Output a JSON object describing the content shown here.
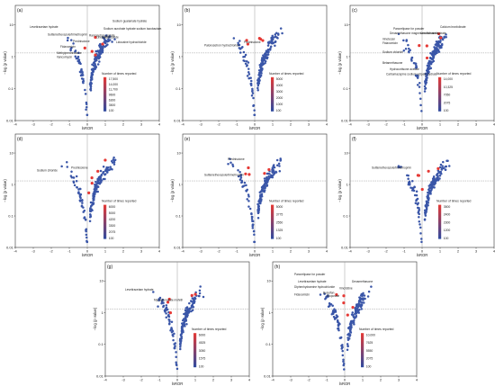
{
  "chart_data": [
    {
      "type": "scatter",
      "panel_label": "(a)",
      "xlabel": "lnROR",
      "ylabel": "−log (p value)",
      "xlim": [
        -4,
        4
      ],
      "ylim": [
        0.01,
        40
      ],
      "ylog": true,
      "xticks": [
        -4,
        -3,
        -2,
        -1,
        0,
        1,
        2,
        3,
        4
      ],
      "yticks": [
        "0.01",
        "0.1",
        "1",
        "10"
      ],
      "legend": {
        "title": "Number of times reported",
        "values": [
          "17,500",
          "14,000",
          "11,700",
          "9600",
          "6300",
          "3500",
          "100"
        ]
      },
      "annotations": [
        {
          "text": "Levetiracetam hydrate",
          "x": -3.2,
          "y": 8
        },
        {
          "text": "Sulfamethoxazole/trimethoprim",
          "x": -2.2,
          "y": 4.5
        },
        {
          "text": "Prednisolone",
          "x": -0.8,
          "y": 2.8
        },
        {
          "text": "Fidaxomicin",
          "x": -1.5,
          "y": 1.9
        },
        {
          "text": "Methylprednisolone",
          "x": -1.7,
          "y": 1.2
        },
        {
          "text": "Vancomycin",
          "x": -1.7,
          "y": 0.9
        },
        {
          "text": "Sodium guaiamate hydrate",
          "x": 1.4,
          "y": 12
        },
        {
          "text": "Sodium aurobate hydrate sodium tazobactam",
          "x": 0.9,
          "y": 7
        },
        {
          "text": "Ramosetron acetate",
          "x": 0.1,
          "y": 4.3
        },
        {
          "text": "Levosulpiride",
          "x": 0.8,
          "y": 3.8
        },
        {
          "text": "Linezolid",
          "x": 0.5,
          "y": 3.8
        },
        {
          "text": "Lidocaine hydrochloride",
          "x": 1.6,
          "y": 2.6
        }
      ]
    },
    {
      "type": "scatter",
      "panel_label": "(b)",
      "xlabel": "lnROR",
      "ylabel": "−log (p value)",
      "xlim": [
        -4,
        4
      ],
      "ylim": [
        0.01,
        40
      ],
      "ylog": true,
      "xticks": [
        -4,
        -3,
        -2,
        -1,
        0,
        1,
        2,
        3,
        4
      ],
      "yticks": [
        "0.01",
        "0.1",
        "1",
        "10"
      ],
      "legend": {
        "title": "Number of times reported",
        "values": [
          "5000",
          "4000",
          "3000",
          "2000",
          "1000",
          "100"
        ]
      },
      "annotations": [
        {
          "text": "Prednisolone",
          "x": -0.6,
          "y": 2.6
        },
        {
          "text": "Palonosetron hydrochloride",
          "x": -2.8,
          "y": 2.1
        }
      ]
    },
    {
      "type": "scatter",
      "panel_label": "(c)",
      "xlabel": "lnROR",
      "ylabel": "−log (p value)",
      "xlim": [
        -4,
        4
      ],
      "ylim": [
        0.01,
        40
      ],
      "ylog": true,
      "xticks": [
        -4,
        -3,
        -2,
        -1,
        0,
        1,
        2,
        3,
        4
      ],
      "yticks": [
        "0.01",
        "0.1",
        "1",
        "10"
      ],
      "legend": {
        "title": "Number of times reported",
        "values": [
          "14,000",
          "10,325",
          "7050",
          "2075",
          "100"
        ]
      },
      "annotations": [
        {
          "text": "Calcium levofolinate",
          "x": 1.0,
          "y": 8
        },
        {
          "text": "Pancrelipase for powder",
          "x": -1.6,
          "y": 7
        },
        {
          "text": "Dexamethasone magnesium fumarate",
          "x": -1.8,
          "y": 5
        },
        {
          "text": "Levofolinate hydrate",
          "x": -0.1,
          "y": 5
        },
        {
          "text": "Irinotecan",
          "x": -2.2,
          "y": 3.3
        },
        {
          "text": "Fidaxomicin",
          "x": -2.2,
          "y": 2.5
        },
        {
          "text": "Sodium chloride",
          "x": -2.2,
          "y": 1.3
        },
        {
          "text": "Betamethasone",
          "x": -2.2,
          "y": 0.6
        },
        {
          "text": "Hydrocortisone acetate",
          "x": -1.8,
          "y": 0.38
        },
        {
          "text": "Carbamazepine sodium adipate hydrate",
          "x": -2.0,
          "y": 0.26
        }
      ]
    },
    {
      "type": "scatter",
      "panel_label": "(d)",
      "xlabel": "lnROR",
      "ylabel": "−log (p value)",
      "xlim": [
        -4,
        4
      ],
      "ylim": [
        0.01,
        40
      ],
      "ylog": true,
      "xticks": [
        -4,
        -3,
        -2,
        -1,
        0,
        1,
        2,
        3,
        4
      ],
      "yticks": [
        "0.01",
        "0.1",
        "1",
        "10"
      ],
      "legend": {
        "title": "Number of times reported",
        "values": [
          "6000",
          "5000",
          "4200",
          "3300",
          "2075",
          "100"
        ]
      },
      "annotations": [
        {
          "text": "Prednisolone",
          "x": -0.9,
          "y": 3.2
        },
        {
          "text": "Sodium chloride",
          "x": -2.8,
          "y": 2.6
        }
      ]
    },
    {
      "type": "scatter",
      "panel_label": "(e)",
      "xlabel": "lnROR",
      "ylabel": "−log (p value)",
      "xlim": [
        -4,
        4
      ],
      "ylim": [
        0.01,
        40
      ],
      "ylog": true,
      "xticks": [
        -4,
        -3,
        -2,
        -1,
        0,
        1,
        2,
        3,
        4
      ],
      "yticks": [
        "0.01",
        "0.1",
        "1",
        "10"
      ],
      "legend": {
        "title": "Number of times reported",
        "values": [
          "5000",
          "3775",
          "2550",
          "1325",
          "100"
        ]
      },
      "annotations": [
        {
          "text": "Prednisolone",
          "x": -1.5,
          "y": 6
        },
        {
          "text": "Sulfamethoxazole/trimethoprim",
          "x": -2.8,
          "y": 1.9
        }
      ]
    },
    {
      "type": "scatter",
      "panel_label": "(f)",
      "xlabel": "lnROR",
      "ylabel": "−log (p value)",
      "xlim": [
        -4,
        4
      ],
      "ylim": [
        0.01,
        40
      ],
      "ylog": true,
      "xticks": [
        -4,
        -3,
        -2,
        -1,
        0,
        1,
        2,
        3,
        4
      ],
      "yticks": [
        "0.01",
        "0.1",
        "1",
        "10"
      ],
      "legend": {
        "title": "Number of times reported",
        "values": [
          "3500",
          "2400",
          "2300",
          "1200",
          "100"
        ]
      },
      "annotations": [
        {
          "text": "Sulfamethoxazole/trimethoprim",
          "x": -2.8,
          "y": 3.2
        }
      ]
    },
    {
      "type": "scatter",
      "panel_label": "(g)",
      "xlabel": "lnROR",
      "ylabel": "−log (p value)",
      "xlim": [
        -4,
        4
      ],
      "ylim": [
        0.01,
        40
      ],
      "ylog": true,
      "xticks": [
        -4,
        -3,
        -2,
        -1,
        0,
        1,
        2,
        3,
        4
      ],
      "yticks": [
        "0.01",
        "0.1",
        "1",
        "10"
      ],
      "legend": {
        "title": "Number of times reported",
        "values": [
          "6000",
          "4525",
          "3050",
          "1575",
          "100"
        ]
      },
      "annotations": [
        {
          "text": "Levetiracetam hydrate",
          "x": -2.9,
          "y": 5
        },
        {
          "text": "Mycophenolate mofetil",
          "x": -1.3,
          "y": 2.3
        }
      ]
    },
    {
      "type": "scatter",
      "panel_label": "(h)",
      "xlabel": "lnROR",
      "ylabel": "−log (p value)",
      "xlim": [
        -4,
        4
      ],
      "ylim": [
        0.01,
        40
      ],
      "ylog": true,
      "xticks": [
        -4,
        -3,
        -2,
        -1,
        0,
        1,
        2,
        3,
        4
      ],
      "yticks": [
        "0.01",
        "0.1",
        "1",
        "10"
      ],
      "legend": {
        "title": "Number of times reported",
        "values": [
          "10,000",
          "7625",
          "5550",
          "2075",
          "100"
        ]
      },
      "annotations": [
        {
          "text": "Pancrelipase for powder",
          "x": -2.8,
          "y": 15
        },
        {
          "text": "Levetiracetam hydrate",
          "x": -2.6,
          "y": 9
        },
        {
          "text": "Dexamethasone",
          "x": 0.4,
          "y": 9
        },
        {
          "text": "Diphenhydramine hydrochloride",
          "x": -2.8,
          "y": 6
        },
        {
          "text": "Vincristine",
          "x": -0.3,
          "y": 5.5
        },
        {
          "text": "Busulfan",
          "x": -1.2,
          "y": 4
        },
        {
          "text": "Fidaxomicin",
          "x": -2.8,
          "y": 3.5
        },
        {
          "text": "Etoposide",
          "x": -1.0,
          "y": 3.1
        }
      ]
    }
  ],
  "colors": {
    "point_blue": "#3a56a8",
    "point_red": "#e53935",
    "refline": "#9a9a9a",
    "legend_top": "#e53935",
    "legend_bottom": "#2e4aa0"
  }
}
